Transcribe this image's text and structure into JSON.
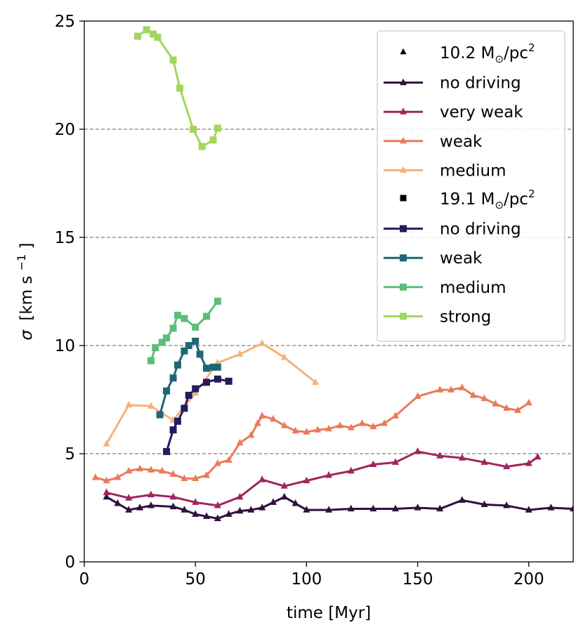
{
  "chart_data": {
    "type": "line",
    "xlabel": "time [Myr]",
    "ylabel_symbol": "σ",
    "ylabel_unit_main": "[km s",
    "ylabel_unit_exp": "−1",
    "ylabel_unit_end": "]",
    "xlim": [
      0,
      220
    ],
    "ylim": [
      0,
      25
    ],
    "xticks": [
      0,
      50,
      100,
      150,
      200
    ],
    "yticks": [
      0,
      5,
      10,
      15,
      20,
      25
    ],
    "grid": "horizontal dashed",
    "legend_position": "top-right",
    "groups": [
      {
        "header_main": "10.2 M",
        "header_sub": "⊙",
        "header_unit": "/pc",
        "header_sup": "2",
        "marker": "triangle",
        "series": [
          {
            "name": "no driving",
            "color": "#2d1140",
            "marker": "triangle",
            "x": [
              10,
              15,
              20,
              25,
              30,
              40,
              45,
              50,
              55,
              60,
              65,
              70,
              75,
              80,
              85,
              90,
              95,
              100,
              110,
              120,
              130,
              140,
              150,
              160,
              170,
              180,
              190,
              200,
              210,
              220
            ],
            "y": [
              3.0,
              2.7,
              2.4,
              2.5,
              2.6,
              2.55,
              2.4,
              2.2,
              2.1,
              2.0,
              2.2,
              2.35,
              2.4,
              2.5,
              2.75,
              3.0,
              2.7,
              2.4,
              2.4,
              2.45,
              2.45,
              2.45,
              2.5,
              2.45,
              2.85,
              2.65,
              2.6,
              2.4,
              2.5,
              2.45
            ]
          },
          {
            "name": "very weak",
            "color": "#a1255e",
            "marker": "triangle",
            "x": [
              10,
              20,
              30,
              40,
              50,
              60,
              70,
              80,
              90,
              100,
              110,
              120,
              130,
              140,
              150,
              160,
              170,
              180,
              190,
              200,
              204
            ],
            "y": [
              3.2,
              2.95,
              3.1,
              3.0,
              2.75,
              2.6,
              3.0,
              3.8,
              3.5,
              3.75,
              4.0,
              4.2,
              4.5,
              4.6,
              5.1,
              4.9,
              4.8,
              4.6,
              4.4,
              4.55,
              4.85
            ]
          },
          {
            "name": "weak",
            "color": "#ea7a5a",
            "marker": "triangle",
            "x": [
              5,
              10,
              15,
              20,
              25,
              30,
              35,
              40,
              45,
              50,
              55,
              60,
              65,
              70,
              75,
              78,
              80,
              85,
              90,
              95,
              100,
              105,
              110,
              115,
              120,
              125,
              130,
              135,
              140,
              150,
              160,
              165,
              170,
              175,
              180,
              185,
              190,
              195,
              200
            ],
            "y": [
              3.9,
              3.75,
              3.9,
              4.2,
              4.3,
              4.25,
              4.2,
              4.05,
              3.85,
              3.85,
              4.0,
              4.55,
              4.7,
              5.5,
              5.85,
              6.4,
              6.75,
              6.6,
              6.3,
              6.05,
              6.0,
              6.1,
              6.15,
              6.3,
              6.2,
              6.4,
              6.25,
              6.4,
              6.75,
              7.65,
              7.95,
              7.95,
              8.05,
              7.7,
              7.55,
              7.3,
              7.1,
              7.0,
              7.35
            ]
          },
          {
            "name": "medium",
            "color": "#f5b27a",
            "marker": "triangle",
            "x": [
              10,
              20,
              30,
              40,
              50,
              60,
              70,
              80,
              90,
              104
            ],
            "y": [
              5.45,
              7.25,
              7.2,
              6.55,
              7.8,
              9.2,
              9.6,
              10.1,
              9.45,
              8.3
            ]
          }
        ]
      },
      {
        "header_main": "19.1 M",
        "header_sub": "⊙",
        "header_unit": "/pc",
        "header_sup": "2",
        "marker": "square",
        "series": [
          {
            "name": "no driving",
            "color": "#281a5f",
            "marker": "square",
            "x": [
              37,
              40,
              42,
              45,
              47,
              50,
              55,
              60,
              65
            ],
            "y": [
              5.1,
              6.1,
              6.5,
              7.1,
              7.7,
              8.0,
              8.3,
              8.45,
              8.35
            ]
          },
          {
            "name": "weak",
            "color": "#1f6675",
            "marker": "square",
            "x": [
              34,
              37,
              40,
              42,
              45,
              47,
              50,
              52,
              55,
              58,
              60
            ],
            "y": [
              6.8,
              7.9,
              8.5,
              9.1,
              9.75,
              10.0,
              10.2,
              9.6,
              8.95,
              9.0,
              9.0
            ]
          },
          {
            "name": "medium",
            "color": "#5cbd78",
            "marker": "square",
            "x": [
              30,
              32,
              35,
              37,
              40,
              42,
              45,
              50,
              55,
              60
            ],
            "y": [
              9.3,
              9.9,
              10.15,
              10.35,
              10.8,
              11.4,
              11.25,
              10.85,
              11.35,
              12.05
            ]
          },
          {
            "name": "strong",
            "color": "#a3d65c",
            "marker": "square",
            "x": [
              24,
              28,
              31,
              33,
              40,
              43,
              49,
              53,
              58,
              60
            ],
            "y": [
              24.3,
              24.6,
              24.4,
              24.25,
              23.2,
              21.9,
              20.0,
              19.2,
              19.5,
              20.05
            ]
          }
        ]
      }
    ]
  }
}
